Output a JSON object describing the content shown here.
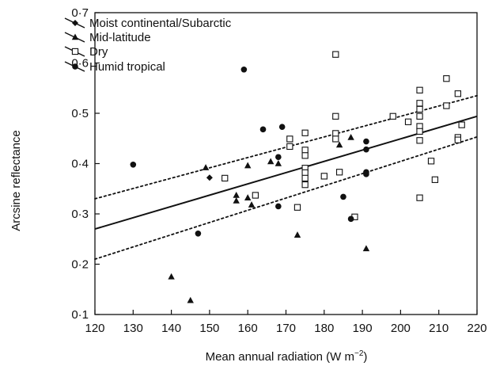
{
  "chart_data": {
    "type": "scatter",
    "title": "",
    "xlabel": "Mean annual radiation (W m",
    "xlabel_superscript": "−2",
    "xlabel_close": ")",
    "ylabel": "Arcsine reflectance",
    "xlim": [
      120,
      220
    ],
    "ylim": [
      0.1,
      0.7
    ],
    "xticks": [
      120,
      130,
      140,
      150,
      160,
      170,
      180,
      190,
      200,
      210,
      220
    ],
    "xtick_labels": [
      "120",
      "130",
      "140",
      "150",
      "160",
      "170",
      "180",
      "190",
      "200",
      "210",
      "220"
    ],
    "yticks": [
      0.1,
      0.2,
      0.3,
      0.4,
      0.5,
      0.6,
      0.7
    ],
    "ytick_labels": [
      "0·1",
      "0·2",
      "0·3",
      "0·4",
      "0·5",
      "0·6",
      "0·7"
    ],
    "grid": false,
    "legend_position": "top-left",
    "series": [
      {
        "name": "Moist continental/Subarctic",
        "marker": "diamond",
        "points": [
          [
            150,
            0.372
          ]
        ]
      },
      {
        "name": "Mid-latitude",
        "marker": "triangle",
        "points": [
          [
            140,
            0.175
          ],
          [
            145,
            0.128
          ],
          [
            149,
            0.392
          ],
          [
            157,
            0.337
          ],
          [
            157,
            0.326
          ],
          [
            160,
            0.396
          ],
          [
            160,
            0.332
          ],
          [
            161,
            0.318
          ],
          [
            166,
            0.404
          ],
          [
            168,
            0.4
          ],
          [
            173,
            0.258
          ],
          [
            184,
            0.437
          ],
          [
            187,
            0.452
          ],
          [
            191,
            0.231
          ]
        ]
      },
      {
        "name": "Dry",
        "marker": "open-square",
        "points": [
          [
            154,
            0.371
          ],
          [
            162,
            0.337
          ],
          [
            171,
            0.449
          ],
          [
            171,
            0.434
          ],
          [
            173,
            0.313
          ],
          [
            175,
            0.461
          ],
          [
            175,
            0.427
          ],
          [
            175,
            0.416
          ],
          [
            175,
            0.391
          ],
          [
            175,
            0.382
          ],
          [
            175,
            0.371
          ],
          [
            175,
            0.358
          ],
          [
            180,
            0.375
          ],
          [
            183,
            0.617
          ],
          [
            183,
            0.494
          ],
          [
            183,
            0.46
          ],
          [
            183,
            0.449
          ],
          [
            184,
            0.383
          ],
          [
            188,
            0.294
          ],
          [
            198,
            0.494
          ],
          [
            202,
            0.483
          ],
          [
            205,
            0.546
          ],
          [
            205,
            0.52
          ],
          [
            205,
            0.508
          ],
          [
            205,
            0.494
          ],
          [
            205,
            0.474
          ],
          [
            205,
            0.464
          ],
          [
            205,
            0.446
          ],
          [
            205,
            0.332
          ],
          [
            208,
            0.405
          ],
          [
            209,
            0.368
          ],
          [
            212,
            0.569
          ],
          [
            212,
            0.515
          ],
          [
            215,
            0.539
          ],
          [
            215,
            0.452
          ],
          [
            215,
            0.447
          ],
          [
            216,
            0.477
          ]
        ]
      },
      {
        "name": "Humid tropical",
        "marker": "filled-circle",
        "points": [
          [
            130,
            0.398
          ],
          [
            147,
            0.261
          ],
          [
            159,
            0.587
          ],
          [
            164,
            0.468
          ],
          [
            168,
            0.413
          ],
          [
            168,
            0.315
          ],
          [
            169,
            0.473
          ],
          [
            185,
            0.334
          ],
          [
            187,
            0.29
          ],
          [
            191,
            0.444
          ],
          [
            191,
            0.428
          ],
          [
            191,
            0.383
          ],
          [
            191,
            0.379
          ]
        ]
      }
    ],
    "regression_line": {
      "style": "solid",
      "x": [
        120,
        220
      ],
      "y": [
        0.27,
        0.494
      ]
    },
    "confidence_band_upper": {
      "style": "dotted",
      "x": [
        120,
        220
      ],
      "y": [
        0.33,
        0.535
      ]
    },
    "confidence_band_lower": {
      "style": "dotted",
      "x": [
        120,
        220
      ],
      "y": [
        0.21,
        0.453
      ]
    }
  }
}
